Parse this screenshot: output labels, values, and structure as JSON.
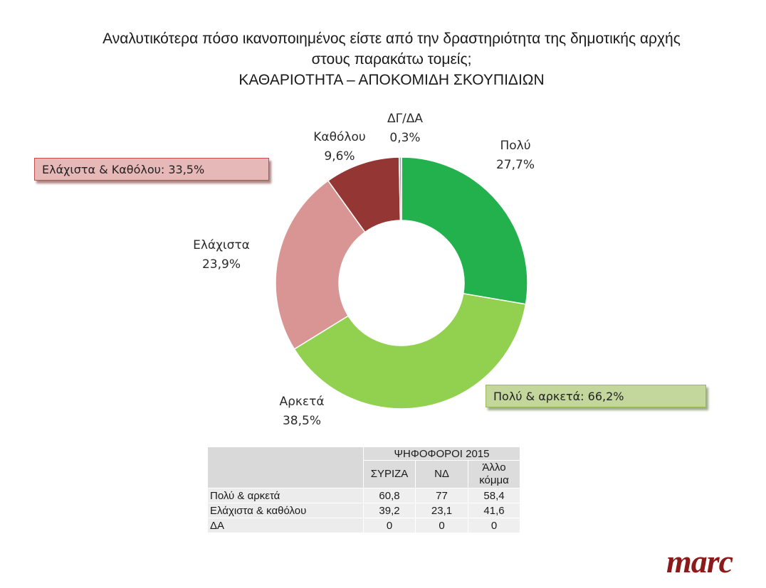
{
  "title": {
    "line1": "Αναλυτικότερα πόσο ικανοποιημένος είστε από την δραστηριότητα της δημοτικής αρχής",
    "line2": "στους παρακάτω τομείς;",
    "line3": "ΚΑΘΑΡΙΟΤΗΤΑ – ΑΠΟΚΟΜΙΔΗ ΣΚΟΥΠΙΔΙΩΝ"
  },
  "chart_data": {
    "type": "pie",
    "variant": "donut",
    "slices": [
      {
        "label": "Πολύ",
        "value": 27.7,
        "display": "27,7%",
        "color": "#22b14c"
      },
      {
        "label": "Αρκετά",
        "value": 38.5,
        "display": "38,5%",
        "color": "#92d050"
      },
      {
        "label": "Ελάχιστα",
        "value": 23.9,
        "display": "23,9%",
        "color": "#d99594"
      },
      {
        "label": "Καθόλου",
        "value": 9.6,
        "display": "9,6%",
        "color": "#943634"
      },
      {
        "label": "ΔΓ/ΔΑ",
        "value": 0.3,
        "display": "0,3%",
        "color": "#a6a6a6"
      }
    ],
    "legend": "none",
    "callouts": {
      "low": "Ελάχιστα & Καθόλου: 33,5%",
      "high": "Πολύ & αρκετά: 66,2%"
    }
  },
  "table": {
    "group_header": "ΨΗΦΟΦΟΡΟΙ 2015",
    "columns": [
      {
        "line1": "ΣΥΡΙΖΑ",
        "line2": ""
      },
      {
        "line1": "ΝΔ",
        "line2": ""
      },
      {
        "line1": "Άλλο",
        "line2": "κόμμα"
      }
    ],
    "rows": [
      {
        "label": "Πολύ & αρκετά",
        "values": [
          "60,8",
          "77",
          "58,4"
        ]
      },
      {
        "label": "Ελάχιστα & καθόλου",
        "values": [
          "39,2",
          "23,1",
          "41,6"
        ]
      },
      {
        "label": "ΔΑ",
        "values": [
          "0",
          "0",
          "0"
        ]
      }
    ]
  },
  "logo": {
    "text": "marc",
    "color": "#8b1a1a"
  }
}
